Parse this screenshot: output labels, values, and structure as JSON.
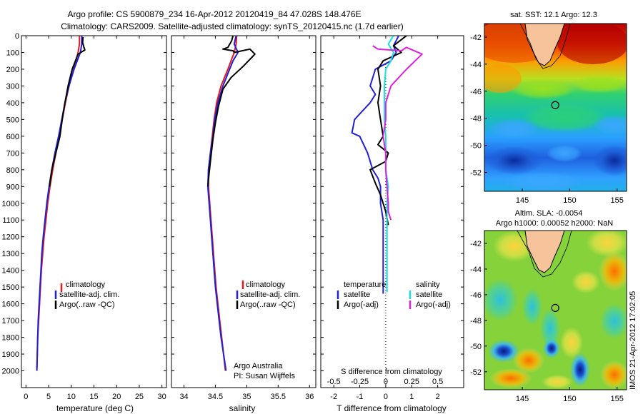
{
  "header": {
    "title_line1": "Argo profile: CS 5900879_234 16-Apr-2012 20120419_84 47.028S 148.476E",
    "title_line2": "Climatology: CARS2009. Satellite-adjusted climatology: synTS_20120415.nc (1.7d earlier)"
  },
  "colors": {
    "climatology": "#e41a1c",
    "satellite": "#1f1fd6",
    "argo": "#000000",
    "salinity_sat": "#18e0e0",
    "salinity_argo": "#e020e0"
  },
  "chart_data": [
    {
      "type": "line",
      "id": "temperature",
      "xlabel": "temperature (deg C)",
      "ylabel": "",
      "xlim": [
        -1,
        31
      ],
      "ylim": [
        0,
        2100
      ],
      "xticks": [
        0,
        5,
        10,
        15,
        20,
        25,
        30
      ],
      "yticks": [
        0,
        100,
        200,
        300,
        400,
        500,
        600,
        700,
        800,
        900,
        1000,
        1100,
        1200,
        1300,
        1400,
        1500,
        1600,
        1700,
        1800,
        1900,
        2000
      ],
      "legend": [
        "climatology",
        "satellite-adj. clim.",
        "Argo(..raw -QC)"
      ],
      "series": [
        {
          "name": "climatology",
          "color": "#e41a1c",
          "x": [
            11.8,
            11.8,
            11.5,
            10.5,
            9.5,
            8.7,
            8.0,
            7.3,
            6.6,
            5.9,
            5.3,
            4.8,
            4.4,
            4.0,
            3.7,
            3.4,
            3.2,
            3.0,
            2.8,
            2.6,
            2.5,
            2.4
          ],
          "y": [
            0,
            50,
            100,
            200,
            300,
            400,
            500,
            600,
            700,
            800,
            900,
            1000,
            1100,
            1200,
            1300,
            1400,
            1500,
            1600,
            1700,
            1800,
            1900,
            1990
          ]
        },
        {
          "name": "satellite-adj. clim.",
          "color": "#1f1fd6",
          "x": [
            12.3,
            12.3,
            12.0,
            10.6,
            9.5,
            8.6,
            7.9,
            7.2,
            6.4,
            5.7,
            5.1,
            4.6,
            4.2,
            3.8,
            3.5,
            3.3,
            3.1,
            2.9,
            2.7,
            2.6,
            2.5,
            2.4
          ],
          "y": [
            0,
            50,
            100,
            200,
            300,
            400,
            500,
            600,
            700,
            800,
            900,
            1000,
            1100,
            1200,
            1300,
            1400,
            1500,
            1600,
            1700,
            1800,
            1900,
            2000
          ]
        },
        {
          "name": "Argo(..raw -QC)",
          "color": "#000000",
          "x": [
            12.6,
            12.5,
            12.8,
            13.0,
            11.5,
            10.2,
            9.3,
            8.6,
            8.0,
            7.5,
            6.6,
            5.7,
            5.2
          ],
          "y": [
            8,
            40,
            70,
            85,
            110,
            200,
            300,
            400,
            500,
            600,
            700,
            800,
            900
          ]
        }
      ]
    },
    {
      "type": "line",
      "id": "salinity",
      "xlabel": "salinity",
      "ylabel": "",
      "xlim": [
        33.8,
        36.1
      ],
      "ylim": [
        0,
        2100
      ],
      "xticks": [
        34,
        34.5,
        35,
        35.5,
        36
      ],
      "legend": [
        "climatology",
        "satellite-adj. clim.",
        "Argo(..raw -QC)"
      ],
      "annotation": [
        "Argo Australia",
        "PI: Susan Wijffels"
      ],
      "series": [
        {
          "name": "climatology",
          "color": "#e41a1c",
          "x": [
            34.84,
            34.83,
            34.8,
            34.7,
            34.59,
            34.52,
            34.48,
            34.45,
            34.42,
            34.39,
            34.39,
            34.41,
            34.43,
            34.45,
            34.47,
            34.49,
            34.51,
            34.54,
            34.57,
            34.6,
            34.63,
            34.66
          ],
          "y": [
            0,
            50,
            100,
            200,
            300,
            400,
            500,
            600,
            700,
            800,
            900,
            1000,
            1100,
            1200,
            1300,
            1400,
            1500,
            1600,
            1700,
            1800,
            1900,
            2000
          ]
        },
        {
          "name": "satellite-adj. clim.",
          "color": "#1f1fd6",
          "x": [
            34.83,
            34.8,
            34.86,
            34.78,
            34.62,
            34.54,
            34.49,
            34.46,
            34.42,
            34.39,
            34.38,
            34.4,
            34.42,
            34.44,
            34.46,
            34.48,
            34.5,
            34.53,
            34.56,
            34.59,
            34.63,
            34.67
          ],
          "y": [
            0,
            50,
            100,
            150,
            300,
            400,
            500,
            600,
            700,
            800,
            900,
            1000,
            1100,
            1200,
            1300,
            1400,
            1500,
            1600,
            1700,
            1800,
            1900,
            2000
          ]
        },
        {
          "name": "Argo(..raw -QC)",
          "color": "#000000",
          "x": [
            34.78,
            34.76,
            34.7,
            34.62,
            34.78,
            34.8,
            35.05,
            35.13,
            34.95,
            34.75,
            34.62,
            34.55,
            34.5,
            34.46,
            34.43,
            34.4,
            34.38
          ],
          "y": [
            0,
            30,
            70,
            80,
            90,
            100,
            80,
            110,
            180,
            250,
            320,
            420,
            520,
            620,
            720,
            820,
            900
          ]
        }
      ]
    },
    {
      "type": "line",
      "id": "difference",
      "xlabel": "T difference from climatology",
      "ylabel": "",
      "xlabel_top": "S difference from climatology",
      "xlim": [
        -2.5,
        3
      ],
      "ylim": [
        0,
        2100
      ],
      "xticks": [
        -2,
        -1,
        0,
        1,
        2
      ],
      "xticks_s": [
        "-0.5",
        "-0.25",
        "0",
        "0.25",
        "0.5"
      ],
      "legend_t_title": "temperature",
      "legend_s_title": "salinity",
      "legend": [
        "satellite",
        "Argo(-adj)",
        "satellite",
        "Argo(-adj)"
      ],
      "series": [
        {
          "name": "satellite",
          "quantity": "temperature",
          "color": "#1f1fd6",
          "x": [
            0.5,
            0.3,
            0.4,
            0.2,
            -0.4,
            -0.6,
            -0.4,
            -0.6,
            -1.2,
            -1.3,
            -1.0,
            -0.7,
            -0.5,
            -0.3,
            -0.2,
            -0.2,
            -0.1,
            -0.1,
            -0.1,
            -0.1,
            -0.1,
            -0.1,
            -0.1,
            -0.1
          ],
          "y": [
            0,
            60,
            100,
            150,
            200,
            300,
            350,
            400,
            500,
            580,
            600,
            700,
            800,
            850,
            900,
            1000,
            1100,
            1200,
            1300,
            1400,
            1450,
            1500,
            1520,
            1540
          ]
        },
        {
          "name": "Argo(-adj)",
          "quantity": "temperature",
          "color": "#000000",
          "x": [
            0.8,
            0.3,
            0.6,
            -0.1,
            -0.3,
            -0.2,
            -0.3,
            -0.2,
            -0.1,
            -0.3,
            0.1,
            0.0,
            -0.6,
            -0.4,
            -0.2,
            0.0,
            0.1
          ],
          "y": [
            0,
            60,
            100,
            150,
            200,
            300,
            400,
            500,
            600,
            650,
            700,
            750,
            800,
            880,
            950,
            1050,
            1130
          ]
        },
        {
          "name": "satellite",
          "quantity": "salinity",
          "color": "#18e0e0",
          "x": [
            0.3,
            0.1,
            0.3,
            0.2,
            0.0,
            -0.05,
            -0.05,
            -0.05,
            0.0,
            0.0,
            0.0,
            0.1,
            0.05,
            0.05,
            0.05,
            0.05,
            0.05,
            0.05,
            0.05,
            0.05
          ],
          "y": [
            0,
            50,
            100,
            150,
            200,
            300,
            400,
            500,
            600,
            700,
            800,
            900,
            1000,
            1100,
            1200,
            1300,
            1400,
            1450,
            1500,
            1530
          ]
        },
        {
          "name": "Argo(-adj)",
          "quantity": "salinity",
          "color": "#e020e0",
          "x": [
            -0.5,
            -0.3,
            0.6,
            0.8,
            1.4,
            0.8,
            0.5,
            0.2,
            0.0,
            0.0,
            -0.1,
            0.0,
            0.0,
            0.05,
            0.1,
            0.1,
            0.2
          ],
          "y": [
            60,
            80,
            90,
            70,
            110,
            200,
            250,
            300,
            400,
            500,
            600,
            700,
            800,
            900,
            1000,
            1050,
            1100
          ]
        }
      ]
    },
    {
      "type": "heatmap",
      "id": "sst_map",
      "title": "sat. SST: 12.1  Argo: 12.3",
      "xlim": [
        141,
        156
      ],
      "ylim": [
        -53.4,
        -41
      ],
      "xticks": [
        145,
        150,
        155
      ],
      "yticks": [
        -42,
        -44,
        -46,
        -48,
        -50,
        -52
      ],
      "argo_position": [
        148.476,
        -47.028
      ]
    },
    {
      "type": "heatmap",
      "id": "sla_map",
      "title_line1": "Altim. SLA: -0.0054",
      "title_line2": "Argo h1000: 0.00052  h2000: NaN",
      "xlim": [
        141,
        156
      ],
      "ylim": [
        -53.4,
        -41
      ],
      "xticks": [
        145,
        150,
        155
      ],
      "yticks": [
        -42,
        -44,
        -46,
        -48,
        -50,
        -52
      ],
      "argo_position": [
        148.476,
        -47.028
      ]
    }
  ],
  "footer": {
    "stamp": "IMOS 21-Apr-2012 17:02:05"
  }
}
